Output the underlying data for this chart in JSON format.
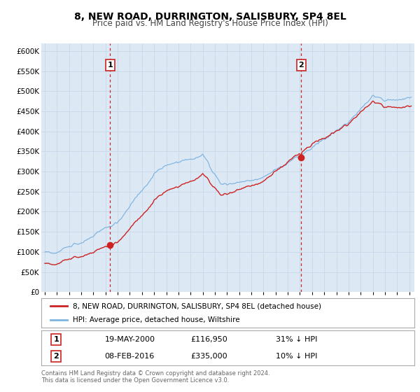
{
  "title": "8, NEW ROAD, DURRINGTON, SALISBURY, SP4 8EL",
  "subtitle": "Price paid vs. HM Land Registry's House Price Index (HPI)",
  "title_fontsize": 10,
  "subtitle_fontsize": 8.5,
  "bg_color": "#dce9f5",
  "fig_bg_color": "#ffffff",
  "hpi_color": "#7fb3e0",
  "price_color": "#cc2222",
  "vline_color": "#cc2222",
  "xlim_left": 1994.7,
  "xlim_right": 2025.4,
  "ylim_bottom": 0,
  "ylim_top": 620000,
  "yticks": [
    0,
    50000,
    100000,
    150000,
    200000,
    250000,
    300000,
    350000,
    400000,
    450000,
    500000,
    550000,
    600000
  ],
  "marker1_x": 2000.38,
  "marker1_y": 116950,
  "marker2_x": 2016.1,
  "marker2_y": 335000,
  "legend_label_price": "8, NEW ROAD, DURRINGTON, SALISBURY, SP4 8EL (detached house)",
  "legend_label_hpi": "HPI: Average price, detached house, Wiltshire",
  "table_row1": [
    "1",
    "19-MAY-2000",
    "£116,950",
    "31% ↓ HPI"
  ],
  "table_row2": [
    "2",
    "08-FEB-2016",
    "£335,000",
    "10% ↓ HPI"
  ],
  "footer1": "Contains HM Land Registry data © Crown copyright and database right 2024.",
  "footer2": "This data is licensed under the Open Government Licence v3.0."
}
